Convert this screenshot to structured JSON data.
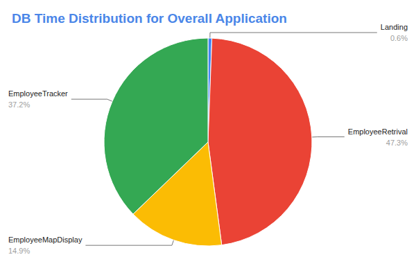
{
  "chart_data": {
    "type": "pie",
    "title": "DB Time Distribution for Overall Application",
    "categories": [
      "Landing",
      "EmployeeRetrival",
      "EmployeeMapDisplay",
      "EmployeeTracker"
    ],
    "values": [
      0.6,
      47.3,
      14.9,
      37.2
    ],
    "value_labels": [
      "0.6%",
      "47.3%",
      "14.9%",
      "37.2%"
    ],
    "colors": [
      "#4285f4",
      "#ea4335",
      "#fbbc04",
      "#34a853"
    ],
    "data_labels": true
  }
}
